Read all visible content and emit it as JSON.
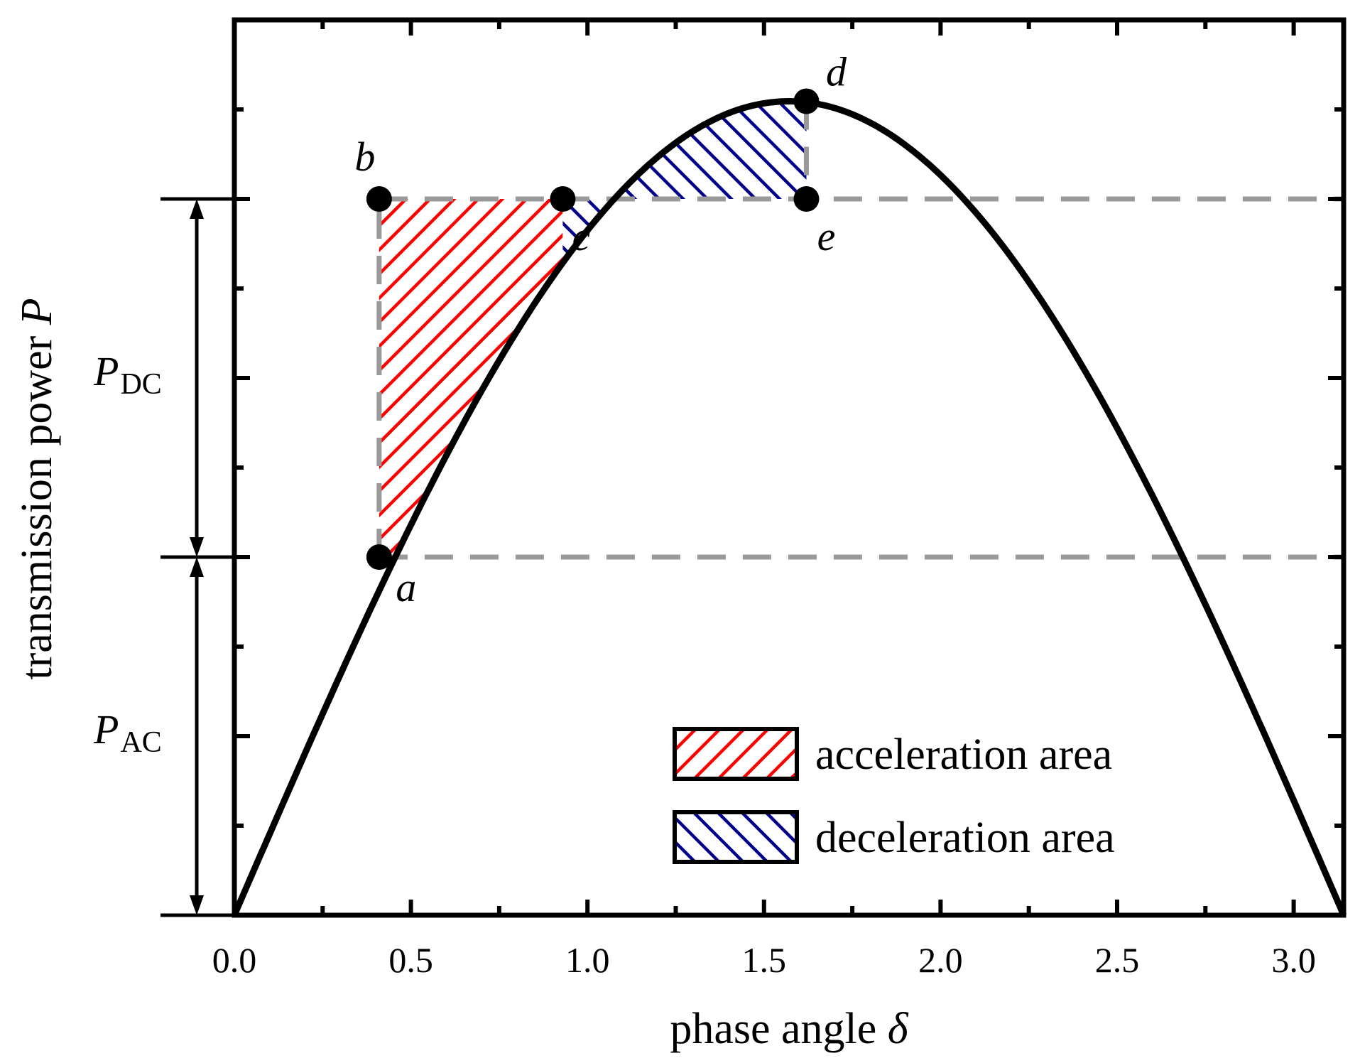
{
  "chart_data": {
    "type": "line",
    "title": "",
    "xlabel": "phase angle",
    "xlabel_symbol": "δ",
    "ylabel": "transmission power",
    "ylabel_symbol": "P",
    "xlim": [
      0,
      3.14159
    ],
    "ylim": [
      0,
      1.1
    ],
    "x_ticks": [
      {
        "value": 0.0,
        "label": "0.0"
      },
      {
        "value": 0.5,
        "label": "0.5"
      },
      {
        "value": 1.0,
        "label": "1.0"
      },
      {
        "value": 1.5,
        "label": "1.5"
      },
      {
        "value": 2.0,
        "label": "2.0"
      },
      {
        "value": 2.5,
        "label": "2.5"
      },
      {
        "value": 3.0,
        "label": "3.0"
      }
    ],
    "x_minor_step": 0.25,
    "y_major_step": 0.22,
    "y_minor_step": 0.11,
    "curve": {
      "name": "P = sin(δ)",
      "function": "sin",
      "amplitude": 1.0,
      "x_from": 0,
      "x_to": 3.14159
    },
    "levels": {
      "p_ac": 0.44,
      "p_dc": 0.88
    },
    "points": [
      {
        "id": "a",
        "label": "a",
        "x": 0.41,
        "y": 0.44
      },
      {
        "id": "b",
        "label": "b",
        "x": 0.41,
        "y": 0.88
      },
      {
        "id": "c",
        "label": "c",
        "x": 0.93,
        "y": 0.88
      },
      {
        "id": "d",
        "label": "d",
        "x": 1.62,
        "y": 1.0
      },
      {
        "id": "e",
        "label": "e",
        "x": 1.62,
        "y": 0.88
      }
    ],
    "bracket_labels": {
      "dc": {
        "main": "P",
        "sub": "DC"
      },
      "ac": {
        "main": "P",
        "sub": "AC"
      }
    },
    "legend": {
      "position": "bottom-right",
      "items": [
        {
          "label": "acceleration area",
          "color": "#ff0000",
          "hatch": "forward"
        },
        {
          "label": "deceleration area",
          "color": "#00008b",
          "hatch": "back"
        }
      ]
    },
    "colors": {
      "curve": "#000000",
      "dashed": "#999999",
      "accel": "#ff0000",
      "decel": "#00008b"
    }
  }
}
